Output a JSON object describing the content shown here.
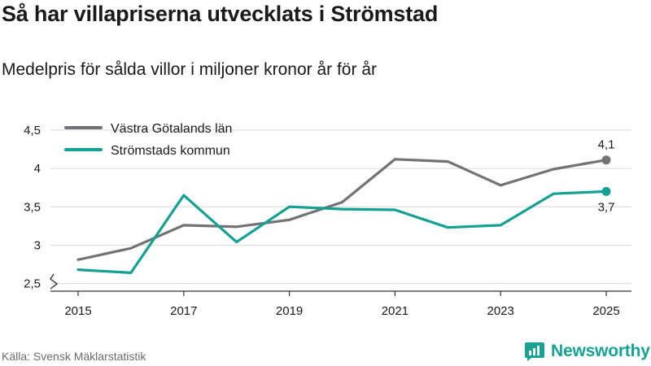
{
  "header": {
    "title": "Så har villapriserna utvecklats i Strömstad",
    "subtitle": "Medelpris för sålda villor i miljoner kronor år för år"
  },
  "footer": {
    "source": "Källa: Svensk Mäklarstatistik",
    "brand": "Newsworthy"
  },
  "colors": {
    "series_gray": "#727277",
    "series_teal": "#14a092",
    "grid": "#d9d9d9",
    "axis": "#333333",
    "brand": "#16a394"
  },
  "chart_data": {
    "type": "line",
    "title": "Så har villapriserna utvecklats i Strömstad",
    "subtitle": "Medelpris för sålda villor i miljoner kronor år för år",
    "xlabel": "",
    "ylabel": "",
    "x": [
      2015,
      2016,
      2017,
      2018,
      2019,
      2020,
      2021,
      2022,
      2023,
      2024,
      2025
    ],
    "x_tick_labels": [
      "2015",
      "2017",
      "2019",
      "2021",
      "2023",
      "2025"
    ],
    "ylim": [
      2.4,
      4.6
    ],
    "y_ticks": [
      2.5,
      3,
      3.5,
      4,
      4.5
    ],
    "y_tick_labels": [
      "2,5",
      "3",
      "3,5",
      "4",
      "4,5"
    ],
    "grid": true,
    "legend_position": "top-left",
    "series": [
      {
        "name": "Västra Götalands län",
        "color": "#727277",
        "values": [
          2.81,
          2.96,
          3.26,
          3.24,
          3.33,
          3.56,
          4.12,
          4.09,
          3.78,
          3.99,
          4.11
        ],
        "end_label": "4,1"
      },
      {
        "name": "Strömstads kommun",
        "color": "#14a092",
        "values": [
          2.68,
          2.64,
          3.65,
          3.04,
          3.5,
          3.47,
          3.46,
          3.23,
          3.26,
          3.67,
          3.7
        ],
        "end_label": "3,7"
      }
    ]
  }
}
